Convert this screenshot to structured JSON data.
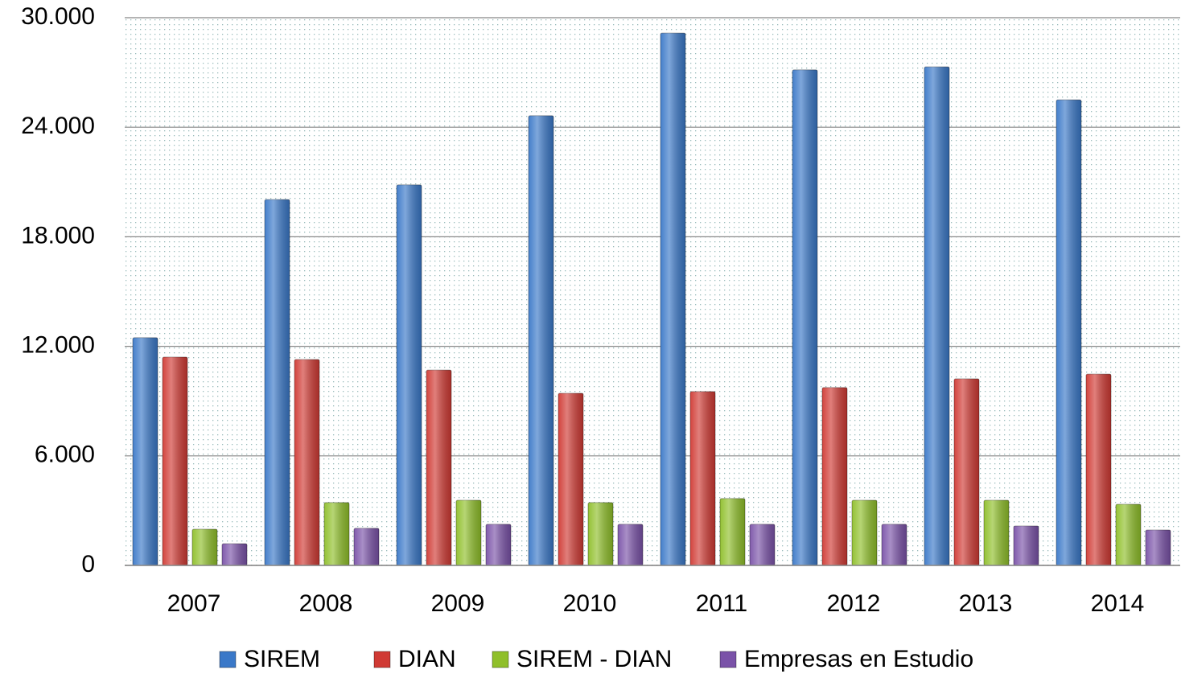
{
  "chart_data": {
    "type": "bar",
    "categories": [
      "2007",
      "2008",
      "2009",
      "2010",
      "2011",
      "2012",
      "2013",
      "2014"
    ],
    "series": [
      {
        "name": "SIREM",
        "color": "#3a78c8",
        "values": [
          12470,
          20040,
          20840,
          24630,
          29160,
          27140,
          27310,
          25500
        ]
      },
      {
        "name": "DIAN",
        "color": "#d03a34",
        "values": [
          11410,
          11280,
          10700,
          9430,
          9520,
          9740,
          10220,
          10480
        ]
      },
      {
        "name": "SIREM - DIAN",
        "color": "#8fbf2a",
        "values": [
          1980,
          3440,
          3570,
          3440,
          3660,
          3570,
          3570,
          3350
        ]
      },
      {
        "name": "Empresas en Estudio",
        "color": "#7a52a8",
        "values": [
          1190,
          2030,
          2250,
          2250,
          2250,
          2250,
          2160,
          1940
        ]
      }
    ],
    "ylim": [
      0,
      30000
    ],
    "yticks": [
      0,
      {
        "value": 6000,
        "label": "6.000"
      },
      {
        "value": 12000,
        "label": "12.000"
      },
      {
        "value": 18000,
        "label": "18.000"
      },
      {
        "value": 24000,
        "label": "24.000"
      },
      {
        "value": 30000,
        "label": "30.000"
      }
    ],
    "grid": true
  }
}
